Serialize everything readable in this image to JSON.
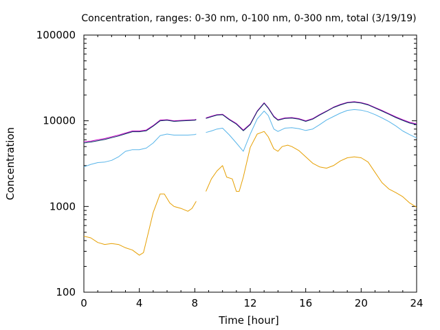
{
  "chart_data": {
    "type": "line",
    "title": "Concentration, ranges: 0-30 nm, 0-100 nm, 0-300 nm, total (3/19/19)",
    "xlabel": "Time [hour]",
    "ylabel": "Concentration",
    "xlim": [
      0,
      24
    ],
    "ylim": [
      100,
      100000
    ],
    "yscale": "log",
    "grid": false,
    "xticks": [
      0,
      4,
      8,
      12,
      16,
      20,
      24
    ],
    "xtick_labels": [
      "0",
      "4",
      "8",
      "12",
      "16",
      "20",
      "24"
    ],
    "yticks": [
      100,
      1000,
      10000,
      100000
    ],
    "ytick_labels": [
      "100",
      "1000",
      "10000",
      "100000"
    ],
    "gap": [
      8.1,
      8.8
    ],
    "series": [
      {
        "color": "#e69f00",
        "x": [
          0,
          0.5,
          1,
          1.5,
          2,
          2.5,
          3,
          3.5,
          4,
          4.3,
          4.6,
          5,
          5.5,
          5.8,
          6.2,
          6.5,
          7,
          7.5,
          7.8,
          8.1,
          8.8,
          9.2,
          9.6,
          10,
          10.3,
          10.7,
          11,
          11.2,
          11.5,
          12,
          12.5,
          13,
          13.3,
          13.7,
          14,
          14.3,
          14.7,
          15,
          15.5,
          16,
          16.5,
          17,
          17.5,
          18,
          18.5,
          19,
          19.5,
          20,
          20.5,
          21,
          21.5,
          22,
          22.5,
          23,
          23.5,
          24
        ],
        "values": [
          450,
          430,
          380,
          360,
          370,
          360,
          330,
          310,
          270,
          290,
          460,
          850,
          1400,
          1400,
          1100,
          1000,
          950,
          880,
          950,
          1150,
          1500,
          2100,
          2600,
          3000,
          2200,
          2100,
          1500,
          1500,
          2200,
          4900,
          7000,
          7500,
          6500,
          4700,
          4400,
          5000,
          5200,
          5000,
          4500,
          3800,
          3200,
          2900,
          2800,
          3000,
          3400,
          3700,
          3800,
          3700,
          3300,
          2500,
          1900,
          1600,
          1450,
          1300,
          1100,
          980
        ]
      },
      {
        "color": "#56b4e9",
        "x": [
          0,
          0.5,
          1,
          1.5,
          2,
          2.5,
          3,
          3.5,
          4,
          4.5,
          5,
          5.5,
          6,
          6.5,
          7,
          7.5,
          8,
          8.1,
          8.8,
          9.2,
          9.6,
          10,
          10.5,
          11,
          11.5,
          12,
          12.5,
          13,
          13.3,
          13.7,
          14,
          14.5,
          15,
          15.5,
          16,
          16.5,
          17,
          17.5,
          18,
          18.5,
          19,
          19.5,
          20,
          20.5,
          21,
          21.5,
          22,
          22.5,
          23,
          23.5,
          24
        ],
        "values": [
          2900,
          3100,
          3250,
          3300,
          3450,
          3800,
          4400,
          4600,
          4600,
          4800,
          5500,
          6700,
          7000,
          6800,
          6800,
          6800,
          6900,
          7000,
          7300,
          7600,
          8000,
          8200,
          6800,
          5500,
          4400,
          7000,
          10500,
          13000,
          11500,
          8000,
          7500,
          8200,
          8300,
          8100,
          7700,
          8000,
          9000,
          10200,
          11200,
          12300,
          13200,
          13500,
          13300,
          12700,
          11800,
          10800,
          9800,
          8700,
          7600,
          6900,
          6300
        ]
      },
      {
        "color": "#c000c0",
        "x": [
          0,
          0.5,
          1,
          1.5,
          2,
          2.5,
          3,
          3.5,
          4,
          4.5,
          5,
          5.5,
          6,
          6.5,
          7,
          7.5,
          8,
          8.1,
          8.8,
          9.2,
          9.6,
          10,
          10.5,
          11,
          11.5,
          12,
          12.5,
          13,
          13.3,
          13.7,
          14,
          14.5,
          15,
          15.5,
          16,
          16.5,
          17,
          17.5,
          18,
          18.5,
          19,
          19.5,
          20,
          20.5,
          21,
          21.5,
          22,
          22.5,
          23,
          23.5,
          24
        ],
        "values": [
          5700,
          5800,
          6000,
          6200,
          6500,
          6800,
          7200,
          7600,
          7600,
          7800,
          8800,
          10200,
          10300,
          10000,
          10100,
          10200,
          10300,
          10400,
          10800,
          11300,
          11800,
          11900,
          10400,
          9300,
          7800,
          9200,
          13000,
          16200,
          14200,
          11300,
          10300,
          10800,
          10900,
          10600,
          10000,
          10600,
          11800,
          13000,
          14400,
          15500,
          16400,
          16700,
          16300,
          15500,
          14300,
          13200,
          12100,
          11100,
          10300,
          9600,
          9200
        ]
      },
      {
        "color": "#003060",
        "x": [
          0,
          0.5,
          1,
          1.5,
          2,
          2.5,
          3,
          3.5,
          4,
          4.5,
          5,
          5.5,
          6,
          6.5,
          7,
          7.5,
          8,
          8.1,
          8.8,
          9.2,
          9.6,
          10,
          10.5,
          11,
          11.5,
          12,
          12.5,
          13,
          13.3,
          13.7,
          14,
          14.5,
          15,
          15.5,
          16,
          16.5,
          17,
          17.5,
          18,
          18.5,
          19,
          19.5,
          20,
          20.5,
          21,
          21.5,
          22,
          22.5,
          23,
          23.5,
          24
        ],
        "values": [
          5500,
          5650,
          5850,
          6050,
          6350,
          6650,
          7050,
          7450,
          7450,
          7650,
          8650,
          10000,
          10150,
          9850,
          9950,
          10050,
          10150,
          10250,
          10650,
          11150,
          11650,
          11750,
          10250,
          9150,
          7650,
          9050,
          12800,
          16000,
          14000,
          11100,
          10150,
          10650,
          10750,
          10450,
          9850,
          10450,
          11650,
          12850,
          14250,
          15300,
          16200,
          16500,
          16100,
          15300,
          14100,
          13000,
          11900,
          10900,
          10100,
          9400,
          9000
        ]
      }
    ]
  }
}
